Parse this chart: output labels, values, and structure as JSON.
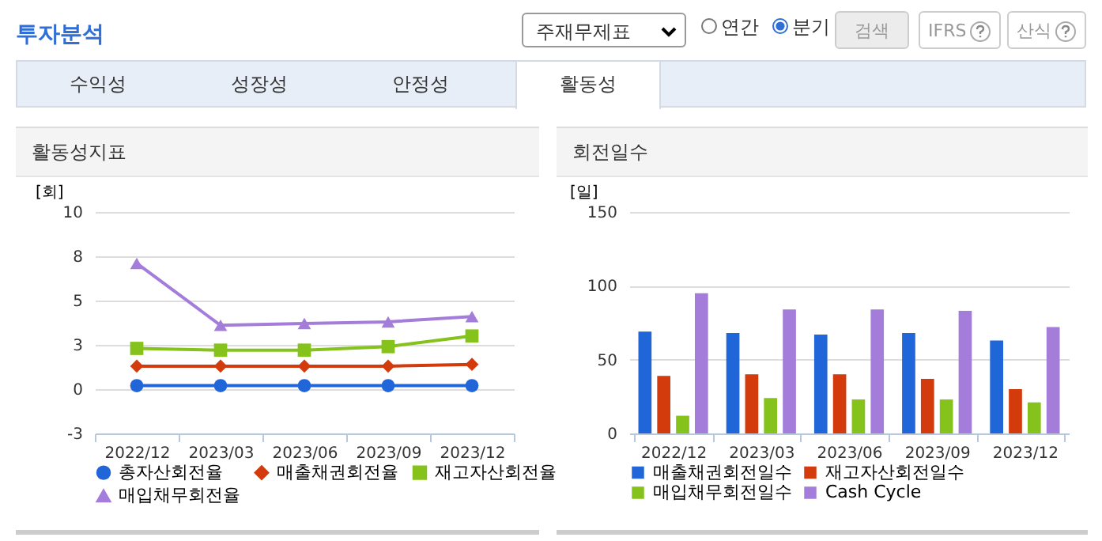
{
  "chart_data": [
    {
      "type": "other",
      "title": "투자분석",
      "annotations": [
        "주재무제표",
        "연간",
        "분기",
        "검색",
        "IFRS",
        "산식",
        "수익성",
        "성장성",
        "안정성",
        "활동성"
      ]
    },
    {
      "type": "line",
      "title": "활동성지표",
      "ylabel": "[회]",
      "categories": [
        "2022/12",
        "2023/03",
        "2023/06",
        "2023/09",
        "2023/12"
      ],
      "ylim": [
        -2.5,
        10
      ],
      "yticks": [
        {
          "value": -2.5,
          "label": "-3"
        },
        0,
        {
          "value": 2.5,
          "label": "3"
        },
        5,
        {
          "value": 7.5,
          "label": "8"
        },
        10
      ],
      "grid": "y",
      "legend": "bottom",
      "series": [
        {
          "name": "총자산회전율",
          "color": "#2166d9",
          "marker": "circle",
          "values": [
            0.2,
            0.2,
            0.2,
            0.2,
            0.2
          ]
        },
        {
          "name": "매출채권회전율",
          "color": "#d33a0c",
          "marker": "diamond",
          "values": [
            1.3,
            1.3,
            1.3,
            1.3,
            1.4
          ]
        },
        {
          "name": "재고자산회전율",
          "color": "#85c21c",
          "marker": "square",
          "values": [
            2.3,
            2.2,
            2.2,
            2.4,
            3.0
          ]
        },
        {
          "name": "매입채무회전율",
          "color": "#a47ddb",
          "marker": "triangle",
          "values": [
            7.1,
            3.6,
            3.7,
            3.8,
            4.1
          ]
        }
      ]
    },
    {
      "type": "bar",
      "title": "회전일수",
      "ylabel": "[일]",
      "categories": [
        "2022/12",
        "2023/03",
        "2023/06",
        "2023/09",
        "2023/12"
      ],
      "ylim": [
        0,
        150
      ],
      "yticks": [
        0,
        50,
        100,
        150
      ],
      "grid": "y",
      "legend": "bottom",
      "series": [
        {
          "name": "매출채권회전일수",
          "color": "#2166d9",
          "values": [
            69,
            68,
            67,
            68,
            63
          ]
        },
        {
          "name": "재고자산회전일수",
          "color": "#d33a0c",
          "values": [
            39,
            40,
            40,
            37,
            30
          ]
        },
        {
          "name": "매입채무회전일수",
          "color": "#85c21c",
          "values": [
            12,
            24,
            23,
            23,
            21
          ]
        },
        {
          "name": "Cash Cycle",
          "color": "#a47ddb",
          "values": [
            95,
            84,
            84,
            83,
            72
          ]
        }
      ]
    }
  ]
}
